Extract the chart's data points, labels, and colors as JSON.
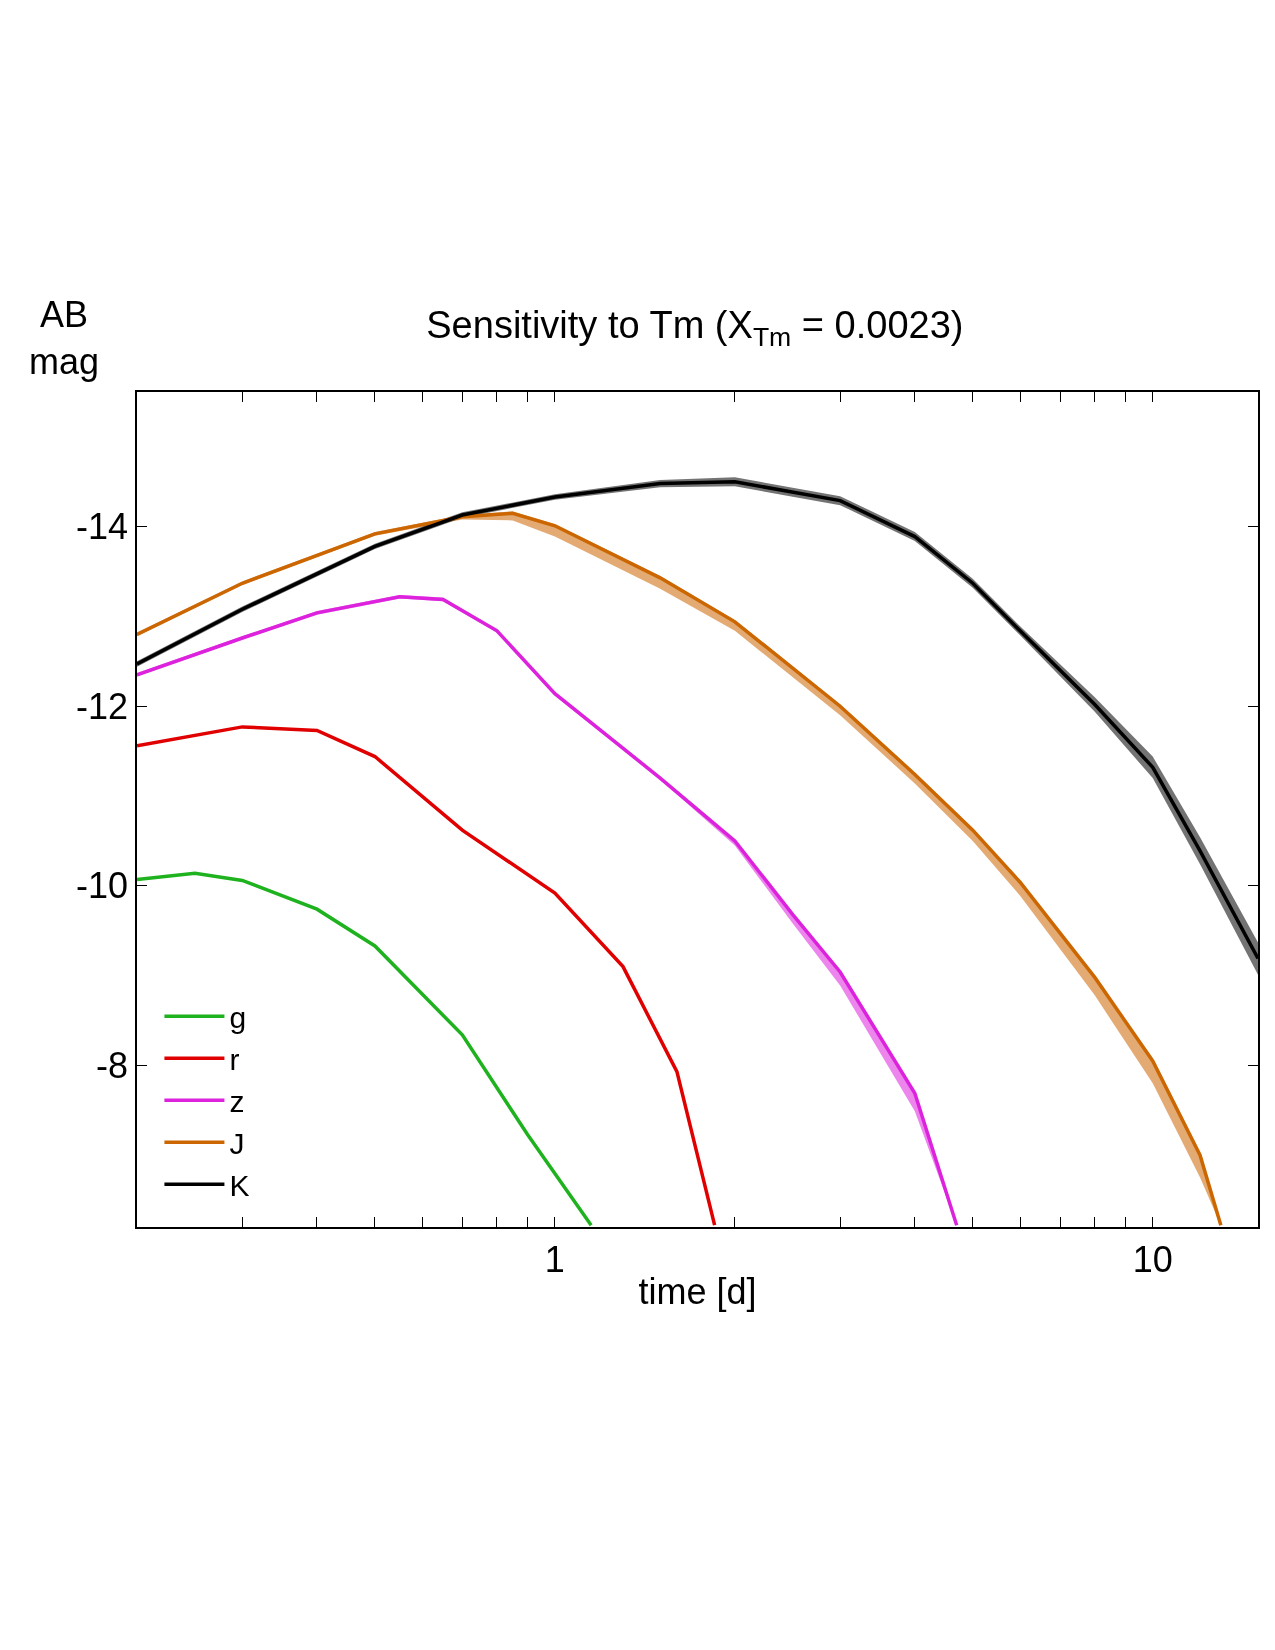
{
  "chart_data": {
    "type": "line",
    "title": "Sensitivity to Tm (X$_{Tm}$ = 0.0023)",
    "xlabel": "time [d]",
    "ylabel": "AB\nmag",
    "log": "x",
    "xlim": [
      0.2,
      15
    ],
    "ylim": [
      -6.2,
      -15.5
    ],
    "xticks": [
      {
        "value": 0.2,
        "label": null
      },
      {
        "value": 0.3,
        "label": null
      },
      {
        "value": 0.4,
        "label": null
      },
      {
        "value": 0.5,
        "label": null
      },
      {
        "value": 0.6,
        "label": null
      },
      {
        "value": 0.7,
        "label": null
      },
      {
        "value": 0.8,
        "label": null
      },
      {
        "value": 0.9,
        "label": null
      },
      1,
      {
        "value": 2,
        "label": null
      },
      {
        "value": 3,
        "label": null
      },
      {
        "value": 4,
        "label": null
      },
      {
        "value": 5,
        "label": null
      },
      {
        "value": 6,
        "label": null
      },
      {
        "value": 7,
        "label": null
      },
      {
        "value": 8,
        "label": null
      },
      {
        "value": 9,
        "label": null
      },
      10
    ],
    "yticks": [
      -14,
      -12,
      -10,
      -8
    ],
    "legend": "bottom left",
    "line_style": "solid",
    "series": [
      {
        "name": "g",
        "color": "#1fb21f",
        "x": [
          0.2,
          0.25,
          0.3,
          0.4,
          0.5,
          0.7,
          0.9,
          1.15
        ],
        "values": [
          -10.07,
          -10.14,
          -10.06,
          -9.74,
          -9.33,
          -8.34,
          -7.23,
          -6.22
        ]
      },
      {
        "name": "r",
        "color": "#e00000",
        "x": [
          0.2,
          0.3,
          0.4,
          0.5,
          0.7,
          1.0,
          1.3,
          1.6,
          1.85
        ],
        "values": [
          -11.56,
          -11.77,
          -11.73,
          -11.44,
          -10.62,
          -9.92,
          -9.1,
          -7.93,
          -6.22
        ]
      },
      {
        "name": "z",
        "color": "#dd22dd",
        "x": [
          0.2,
          0.3,
          0.4,
          0.55,
          0.65,
          0.8,
          1,
          1.5,
          2,
          2.5,
          3,
          4,
          4.7
        ],
        "values": [
          -12.35,
          -12.76,
          -13.04,
          -13.22,
          -13.19,
          -12.84,
          -12.14,
          -11.2,
          -10.5,
          -9.68,
          -9.04,
          -7.69,
          -6.22
        ],
        "lower": [
          -12.37,
          -12.78,
          -13.06,
          -13.24,
          -13.21,
          -12.86,
          -12.16,
          -11.22,
          -10.52,
          -9.7,
          -9.06,
          -7.71,
          -6.24
        ],
        "upper": [
          -12.33,
          -12.74,
          -13.02,
          -13.2,
          -13.17,
          -12.82,
          -12.12,
          -11.18,
          -10.45,
          -9.58,
          -8.89,
          -7.49,
          -6.22
        ]
      },
      {
        "name": "J",
        "color": "#cc6600",
        "x": [
          0.2,
          0.3,
          0.5,
          0.7,
          0.85,
          1,
          1.5,
          2,
          3,
          4,
          5,
          6,
          8,
          10,
          12,
          13
        ],
        "values": [
          -12.8,
          -13.37,
          -13.92,
          -14.11,
          -14.15,
          -14.01,
          -13.43,
          -12.94,
          -12.0,
          -11.24,
          -10.62,
          -10.04,
          -8.98,
          -8.05,
          -7.0,
          -6.22
        ],
        "lower": [
          -12.82,
          -13.39,
          -13.94,
          -14.13,
          -14.17,
          -14.03,
          -13.45,
          -12.96,
          -12.02,
          -11.26,
          -10.64,
          -10.06,
          -9.0,
          -8.07,
          -7.02,
          -6.24
        ],
        "upper": [
          -12.78,
          -13.35,
          -13.9,
          -14.08,
          -14.07,
          -13.89,
          -13.31,
          -12.84,
          -11.9,
          -11.14,
          -10.5,
          -9.89,
          -8.78,
          -7.8,
          -6.75,
          -6.22
        ]
      },
      {
        "name": "K",
        "color": "#000000",
        "x": [
          0.2,
          0.3,
          0.5,
          0.7,
          1.0,
          1.5,
          2,
          3,
          4,
          5,
          6,
          8,
          10,
          12,
          15
        ],
        "values": [
          -12.47,
          -13.08,
          -13.78,
          -14.13,
          -14.33,
          -14.48,
          -14.5,
          -14.29,
          -13.89,
          -13.37,
          -12.84,
          -12.02,
          -11.32,
          -10.39,
          -9.19
        ],
        "lower": [
          -12.5,
          -13.11,
          -13.81,
          -14.16,
          -14.36,
          -14.52,
          -14.55,
          -14.34,
          -13.94,
          -13.42,
          -12.89,
          -12.1,
          -11.44,
          -10.54,
          -9.37
        ],
        "upper": [
          -12.44,
          -13.05,
          -13.75,
          -14.1,
          -14.3,
          -14.44,
          -14.45,
          -14.24,
          -13.84,
          -13.32,
          -12.79,
          -11.94,
          -11.2,
          -10.24,
          -9.01
        ]
      }
    ]
  }
}
